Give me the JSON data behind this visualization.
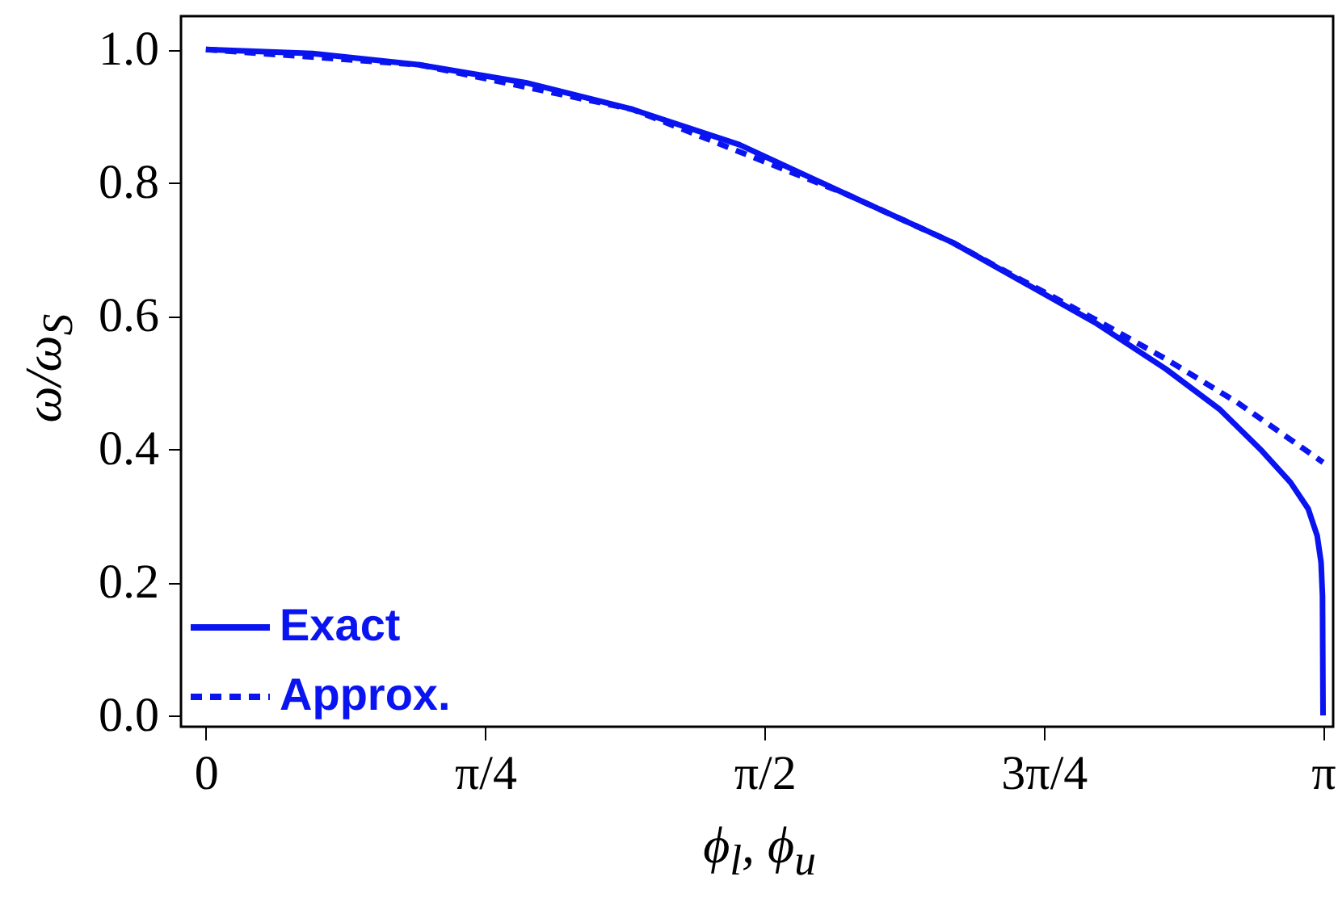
{
  "chart_data": {
    "type": "line",
    "xlabel": "ϕ$_{l}$, ϕ$_{u}$",
    "ylabel": "ω/ω$_{S}$",
    "xlim": [
      -0.07,
      3.17
    ],
    "ylim": [
      -0.017,
      1.05
    ],
    "xticks": [
      {
        "value": 0,
        "label": "0"
      },
      {
        "value": 0.7854,
        "label": "π/4"
      },
      {
        "value": 1.5708,
        "label": "π/2"
      },
      {
        "value": 2.3562,
        "label": "3π/4"
      },
      {
        "value": 3.1416,
        "label": "π"
      }
    ],
    "yticks": [
      {
        "value": 0,
        "label": "0.0"
      },
      {
        "value": 0.2,
        "label": "0.2"
      },
      {
        "value": 0.4,
        "label": "0.4"
      },
      {
        "value": 0.6,
        "label": "0.6"
      },
      {
        "value": 0.8,
        "label": "0.8"
      },
      {
        "value": 1,
        "label": "1.0"
      }
    ],
    "grid": false,
    "legend": "bottom left",
    "series": [
      {
        "name": "Exact",
        "color": "#0a14f0",
        "line_style": "solid",
        "x": [
          0,
          0.3,
          0.6,
          0.9,
          1.2,
          1.5,
          1.8,
          2.1,
          2.3,
          2.5,
          2.7,
          2.85,
          2.97,
          3.05,
          3.1,
          3.125,
          3.136,
          3.14,
          3.1416
        ],
        "values": [
          1,
          0.994,
          0.977,
          0.95,
          0.91,
          0.857,
          0.783,
          0.71,
          0.65,
          0.59,
          0.52,
          0.46,
          0.397,
          0.35,
          0.31,
          0.27,
          0.23,
          0.18,
          0
        ]
      },
      {
        "name": "Approx.",
        "color": "#0a14f0",
        "line_style": "dashed",
        "x": [
          0,
          0.6,
          1.2,
          1.8,
          2.1,
          2.3,
          2.5,
          2.7,
          2.9,
          3.1416
        ],
        "values": [
          1,
          0.977,
          0.91,
          0.783,
          0.71,
          0.652,
          0.595,
          0.535,
          0.47,
          0.38
        ]
      }
    ]
  }
}
